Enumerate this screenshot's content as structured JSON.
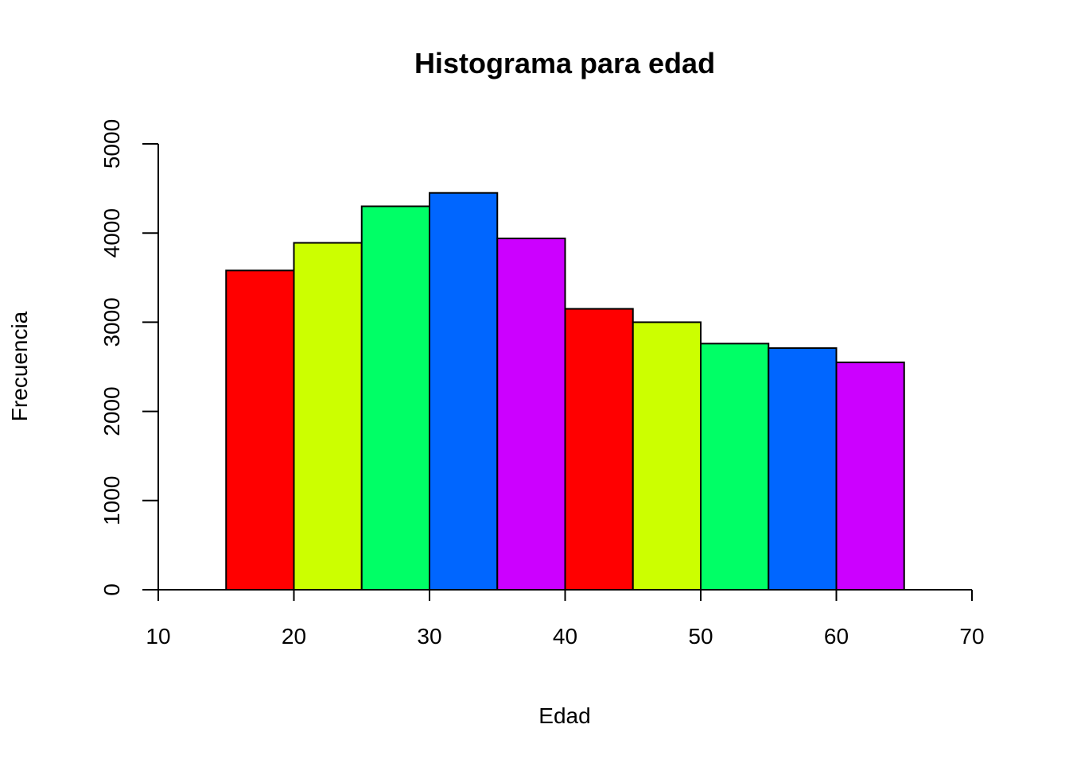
{
  "chart_data": {
    "type": "bar",
    "title": "Histograma para edad",
    "xlabel": "Edad",
    "ylabel": "Frecuencia",
    "xlim": [
      10,
      70
    ],
    "ylim": [
      0,
      5000
    ],
    "xticks": [
      10,
      20,
      30,
      40,
      50,
      60,
      70
    ],
    "yticks": [
      0,
      1000,
      2000,
      3000,
      4000,
      5000
    ],
    "grid": false,
    "bins": [
      {
        "x0": 15,
        "x1": 20,
        "value": 3580,
        "color": "#FF0000"
      },
      {
        "x0": 20,
        "x1": 25,
        "value": 3890,
        "color": "#CCFF00"
      },
      {
        "x0": 25,
        "x1": 30,
        "value": 4300,
        "color": "#00FF66"
      },
      {
        "x0": 30,
        "x1": 35,
        "value": 4450,
        "color": "#0066FF"
      },
      {
        "x0": 35,
        "x1": 40,
        "value": 3940,
        "color": "#CC00FF"
      },
      {
        "x0": 40,
        "x1": 45,
        "value": 3150,
        "color": "#FF0000"
      },
      {
        "x0": 45,
        "x1": 50,
        "value": 3000,
        "color": "#CCFF00"
      },
      {
        "x0": 50,
        "x1": 55,
        "value": 2760,
        "color": "#00FF66"
      },
      {
        "x0": 55,
        "x1": 60,
        "value": 2710,
        "color": "#0066FF"
      },
      {
        "x0": 60,
        "x1": 65,
        "value": 2550,
        "color": "#CC00FF"
      }
    ]
  }
}
